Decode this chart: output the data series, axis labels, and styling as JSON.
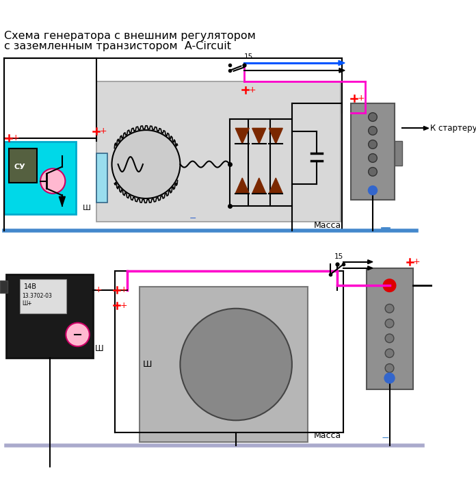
{
  "title_line1": "Схема генератора с внешним регулятором",
  "title_line2": "с заземленным транзистором  A-Circuit",
  "title_fontsize": 11.5,
  "bg": "#ffffff",
  "pink": "#FF00CC",
  "blue_arrow": "#0055FF",
  "blue_ground": "#4488CC",
  "red": "#FF0000",
  "brown_diode": "#7B2800",
  "gray_box": "#D8D8D8",
  "gray_border": "#999999",
  "cyan_fill": "#00D8E8",
  "cyan_border": "#00AACC",
  "dark_olive": "#556040",
  "black": "#000000",
  "ground_label": "Масса",
  "starter_label": "К стартеру",
  "label_15": "15",
  "label_sh": "Ш",
  "label_plus": "+",
  "label_minus": "−"
}
